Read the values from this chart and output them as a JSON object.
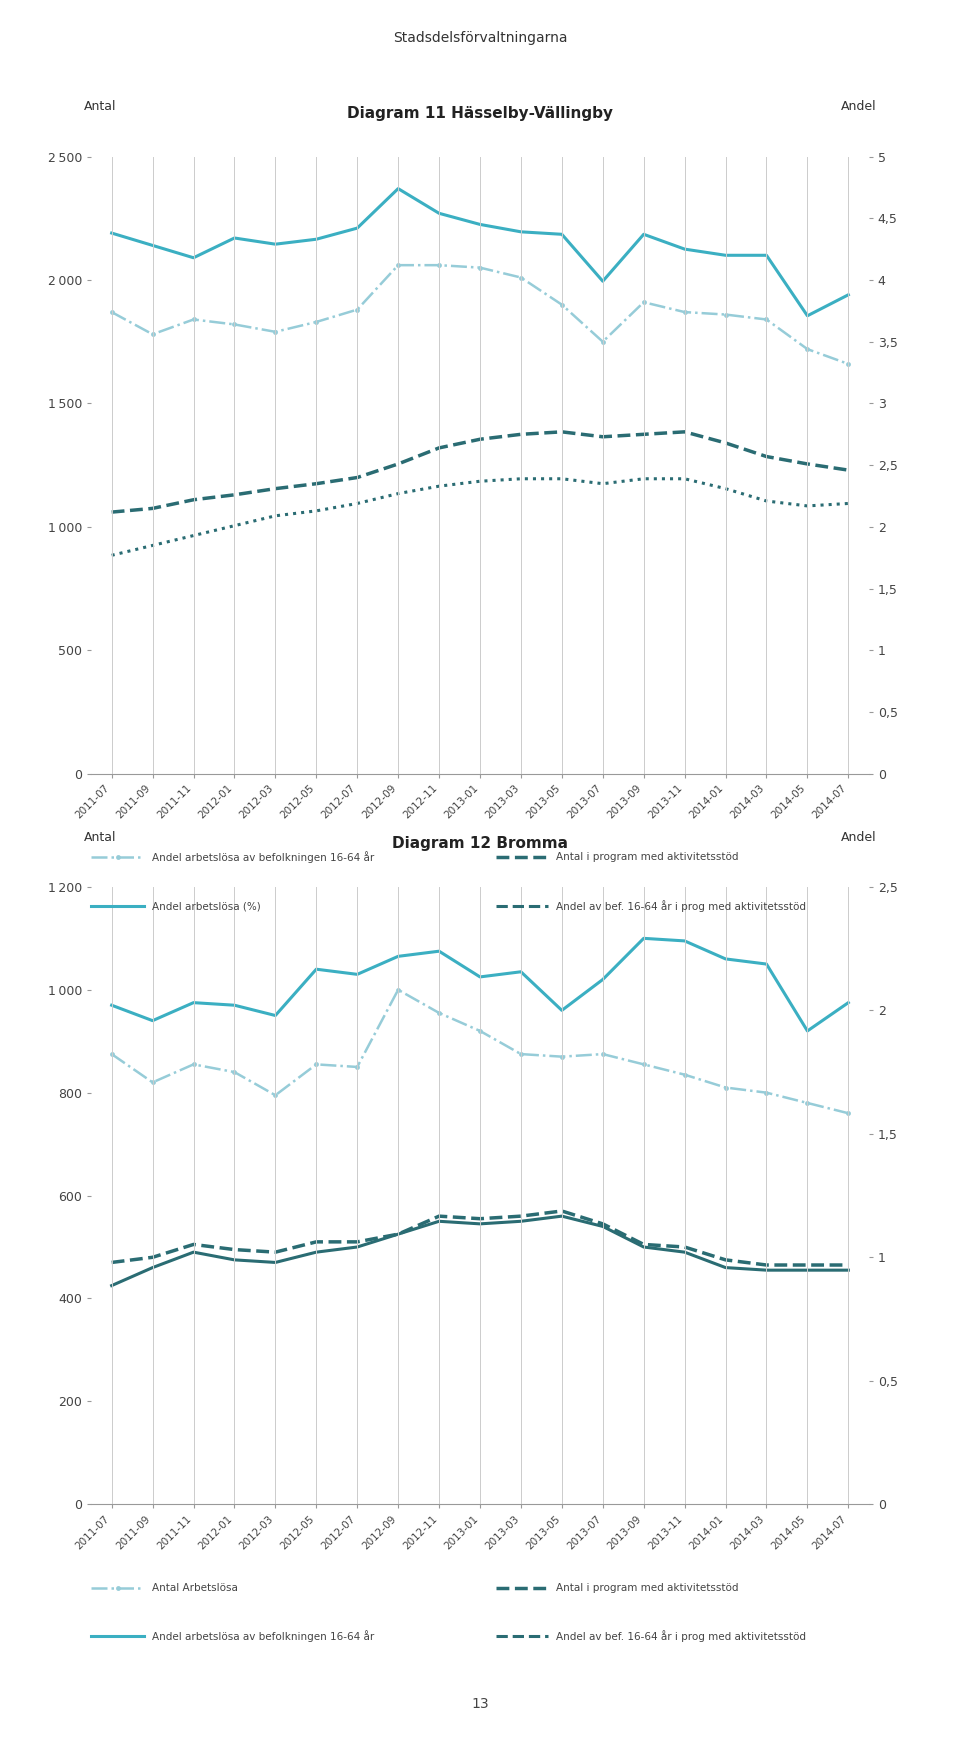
{
  "page_title": "Stadsdelsförvaltningarna",
  "page_number": "13",
  "chart1": {
    "title": "Diagram 11 Hässelby-Vällingby",
    "ylabel_left": "Antal",
    "ylabel_right": "Andel",
    "ylim_left": [
      0,
      2500
    ],
    "ylim_right": [
      0,
      5
    ],
    "yticks_left": [
      0,
      500,
      1000,
      1500,
      2000,
      2500
    ],
    "yticks_right": [
      0,
      0.5,
      1,
      1.5,
      2,
      2.5,
      3,
      3.5,
      4,
      4.5,
      5
    ],
    "x_labels": [
      "2011-07",
      "2011-09",
      "2011-11",
      "2012-01",
      "2012-03",
      "2012-05",
      "2012-07",
      "2012-09",
      "2012-11",
      "2013-01",
      "2013-03",
      "2013-05",
      "2013-07",
      "2013-09",
      "2013-11",
      "2014-01",
      "2014-03",
      "2014-05",
      "2014-07"
    ],
    "series": [
      {
        "key": "andel_befolkning",
        "label": "Andel arbetslösa av befolkningen 16-64 år",
        "color": "#96ccd8",
        "style": "-.",
        "linewidth": 1.8,
        "marker": "o",
        "markersize": 3.5,
        "values": [
          1870,
          1780,
          1840,
          1820,
          1790,
          1830,
          1880,
          2060,
          2060,
          2050,
          2010,
          1900,
          1750,
          1910,
          1870,
          1860,
          1840,
          1720,
          1660
        ]
      },
      {
        "key": "andel_pct",
        "label": "Andel arbetslösa (%)",
        "color": "#3bafc2",
        "style": "-",
        "linewidth": 2.2,
        "marker": null,
        "markersize": 0,
        "values": [
          2190,
          2140,
          2090,
          2170,
          2145,
          2165,
          2210,
          2370,
          2270,
          2225,
          2195,
          2185,
          1995,
          2185,
          2125,
          2100,
          2100,
          1855,
          1940
        ]
      },
      {
        "key": "antal_program",
        "label": "Antal i program med aktivitetssstöd",
        "color": "#2a6c73",
        "style": "--",
        "linewidth": 2.5,
        "marker": null,
        "markersize": 0,
        "values": [
          1060,
          1075,
          1110,
          1130,
          1155,
          1175,
          1200,
          1255,
          1320,
          1355,
          1375,
          1385,
          1365,
          1375,
          1385,
          1340,
          1285,
          1255,
          1230
        ]
      },
      {
        "key": "andel_bef_prog",
        "label": "Andel av bef. 16-64 år i prog med aktivitetssstöd",
        "color": "#2a6c73",
        "style": ":",
        "linewidth": 2.2,
        "marker": null,
        "markersize": 0,
        "values": [
          885,
          925,
          965,
          1005,
          1045,
          1065,
          1095,
          1135,
          1165,
          1185,
          1195,
          1195,
          1175,
          1195,
          1195,
          1155,
          1105,
          1085,
          1095
        ]
      }
    ],
    "legend": [
      {
        "label": "Andel arbetslösa av befolkningen 16-64 år",
        "color": "#96ccd8",
        "style": "-.",
        "linewidth": 1.8
      },
      {
        "label": "Antal i program med aktivitetssstöd",
        "color": "#2a6c73",
        "style": "--",
        "linewidth": 2.2
      },
      {
        "label": "Andel arbetslösa (%)",
        "color": "#3bafc2",
        "style": "-",
        "linewidth": 2.2
      },
      {
        "label": "Andel av bef. 16-64 år i prog med aktivitetssstöd",
        "color": "#2a6c73",
        "style": "-",
        "linewidth": 2.2
      }
    ]
  },
  "chart2": {
    "title": "Diagram 12 Bromma",
    "ylabel_left": "Antal",
    "ylabel_right": "Andel",
    "ylim_left": [
      0,
      1200
    ],
    "ylim_right": [
      0,
      2.5
    ],
    "yticks_left": [
      0,
      200,
      400,
      600,
      800,
      1000,
      1200
    ],
    "yticks_right": [
      0,
      0.5,
      1,
      1.5,
      2,
      2.5
    ],
    "x_labels": [
      "2011-07",
      "2011-09",
      "2011-11",
      "2012-01",
      "2012-03",
      "2012-05",
      "2012-07",
      "2012-09",
      "2012-11",
      "2013-01",
      "2013-03",
      "2013-05",
      "2013-07",
      "2013-09",
      "2013-11",
      "2014-01",
      "2014-03",
      "2014-05",
      "2014-07"
    ],
    "series": [
      {
        "key": "antal_arbetslosa",
        "label": "Antal Arbetslösa",
        "color": "#96ccd8",
        "style": "-.",
        "linewidth": 1.8,
        "marker": "o",
        "markersize": 3.5,
        "values": [
          875,
          820,
          855,
          840,
          795,
          855,
          850,
          1000,
          955,
          920,
          875,
          870,
          875,
          855,
          835,
          810,
          800,
          780,
          760
        ]
      },
      {
        "key": "andel_bef",
        "label": "Andel arbetslösa av befolkningen 16-64 år",
        "color": "#3bafc2",
        "style": "-",
        "linewidth": 2.2,
        "marker": null,
        "markersize": 0,
        "values": [
          970,
          940,
          975,
          970,
          950,
          1040,
          1030,
          1065,
          1075,
          1025,
          1035,
          960,
          1020,
          1100,
          1095,
          1060,
          1050,
          920,
          975
        ]
      },
      {
        "key": "antal_program",
        "label": "Antal i program med aktivitetssstöd",
        "color": "#2a6c73",
        "style": "--",
        "linewidth": 2.5,
        "marker": null,
        "markersize": 0,
        "values": [
          470,
          480,
          505,
          495,
          490,
          510,
          510,
          525,
          560,
          555,
          560,
          570,
          545,
          505,
          500,
          475,
          465,
          465,
          465
        ]
      },
      {
        "key": "andel_bef_prog",
        "label": "Andel av bef. 16-64 år i prog med aktivitetssstöd",
        "color": "#2a6c73",
        "style": "-",
        "linewidth": 2.2,
        "marker": null,
        "markersize": 0,
        "values": [
          425,
          460,
          490,
          475,
          470,
          490,
          500,
          525,
          550,
          545,
          550,
          560,
          540,
          500,
          490,
          460,
          455,
          455,
          455
        ]
      }
    ],
    "legend": [
      {
        "label": "Antal Arbetslösa",
        "color": "#96ccd8",
        "style": "-.",
        "linewidth": 1.8
      },
      {
        "label": "Antal i program med aktivitetssstöd",
        "color": "#2a6c73",
        "style": "--",
        "linewidth": 2.2
      },
      {
        "label": "Andel arbetslösa av befolkningen 16-64 år",
        "color": "#3bafc2",
        "style": "-",
        "linewidth": 2.2
      },
      {
        "label": "Andel av bef. 16-64 år i prog med aktivitetssstöd",
        "color": "#2a6c73",
        "style": "-",
        "linewidth": 2.2
      }
    ]
  }
}
